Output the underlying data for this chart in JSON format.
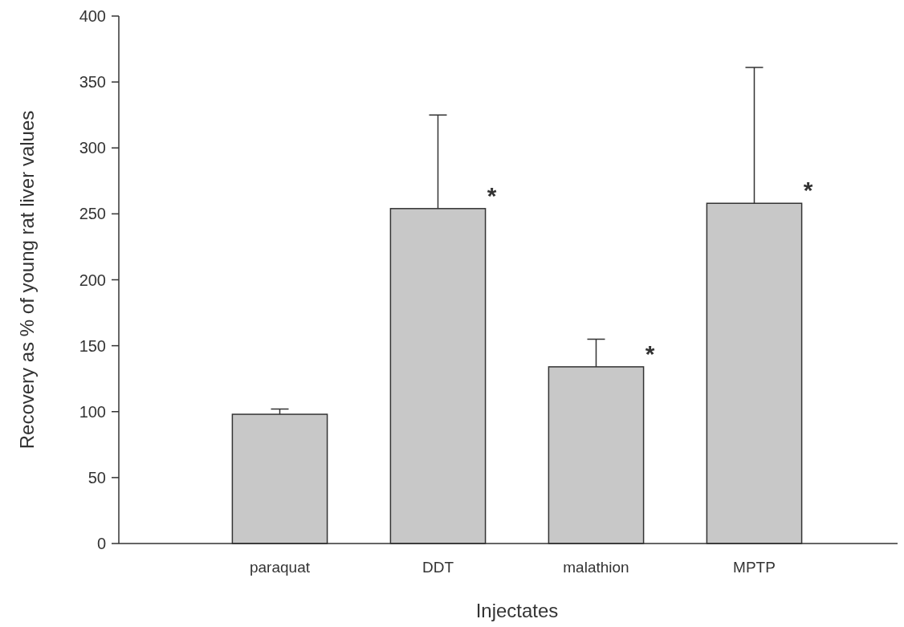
{
  "chart_data": {
    "type": "bar",
    "xlabel": "Injectates",
    "ylabel": "Recovery as % of young rat liver values",
    "categories": [
      "paraquat",
      "DDT",
      "malathion",
      "MPTP"
    ],
    "values": [
      98,
      254,
      134,
      258
    ],
    "errors": [
      [
        98,
        102
      ],
      [
        254,
        325
      ],
      [
        134,
        155
      ],
      [
        258,
        361
      ]
    ],
    "color": "#c8c8c8",
    "ylim": [
      0,
      400
    ],
    "yticks": [
      0,
      50,
      100,
      150,
      200,
      250,
      300,
      350,
      400
    ],
    "grid": false,
    "annotations": [
      {
        "text": "*",
        "x": "DDT",
        "y": 254
      },
      {
        "text": "*",
        "x": "malathion",
        "y": 134
      },
      {
        "text": "*",
        "x": "MPTP",
        "y": 258
      }
    ]
  }
}
